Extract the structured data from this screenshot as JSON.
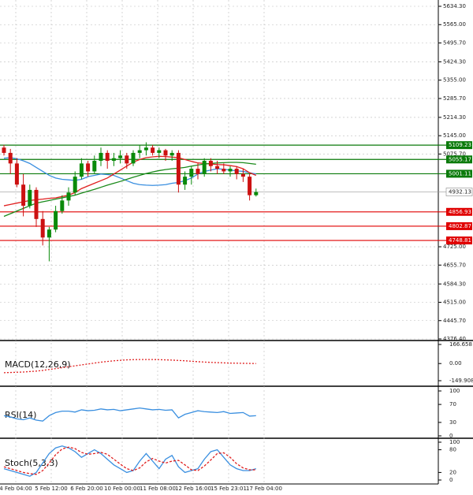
{
  "chart_data": {
    "type": "candlestick",
    "open": [
      5100,
      5080,
      5040,
      4960,
      4880,
      4940,
      4830,
      4760,
      4790,
      4860,
      4900,
      4930,
      4990,
      5040,
      5010,
      5050,
      5080,
      5050,
      5060,
      5070,
      5040,
      5080,
      5090,
      5100,
      5080,
      5090,
      5070,
      5080,
      4960,
      4990,
      5020,
      5000,
      5050,
      5030,
      5020,
      5010,
      5020,
      5000,
      4990,
      4920
    ],
    "high": [
      5110,
      5095,
      5060,
      5000,
      4960,
      4950,
      4860,
      4800,
      4880,
      4920,
      4950,
      5010,
      5060,
      5050,
      5070,
      5100,
      5090,
      5080,
      5090,
      5080,
      5090,
      5110,
      5120,
      5110,
      5100,
      5095,
      5090,
      5090,
      5010,
      5030,
      5040,
      5060,
      5060,
      5050,
      5040,
      5030,
      5030,
      5020,
      5000,
      4945
    ],
    "low": [
      5070,
      5000,
      4950,
      4840,
      4870,
      4800,
      4730,
      4670,
      4780,
      4850,
      4880,
      4920,
      4980,
      4990,
      5000,
      5030,
      5020,
      5030,
      5040,
      5020,
      5030,
      5060,
      5070,
      5070,
      5060,
      5050,
      5050,
      4930,
      4940,
      4960,
      4980,
      4990,
      5010,
      5000,
      5000,
      4990,
      4980,
      4970,
      4900,
      4915
    ],
    "close": [
      5080,
      5040,
      4960,
      4880,
      4940,
      4830,
      4760,
      4790,
      4860,
      4900,
      4930,
      4990,
      5040,
      5010,
      5050,
      5080,
      5050,
      5060,
      5070,
      5040,
      5080,
      5090,
      5100,
      5080,
      5090,
      5070,
      5080,
      4960,
      4990,
      5020,
      5000,
      5050,
      5030,
      5020,
      5010,
      5020,
      5000,
      4990,
      4920,
      4932.13
    ],
    "up_color": "#0a8a0a",
    "down_color": "#cc1111",
    "xtick_labels": [
      "4 Feb 04:00",
      "5 Feb 12:00",
      "6 Feb 20:00",
      "10 Feb 00:00",
      "11 Feb 08:00",
      "12 Feb 16:00",
      "15 Feb 23:01",
      "17 Feb 04:00"
    ],
    "ylim": [
      4376.4,
      5634.3
    ],
    "yticks": [
      {
        "value": 5634.3,
        "label": "5634.30"
      },
      {
        "value": 5565,
        "label": "5565.00"
      },
      {
        "value": 5495.7,
        "label": "5495.70"
      },
      {
        "value": 5424.3,
        "label": "5424.30"
      },
      {
        "value": 5355,
        "label": "5355.00"
      },
      {
        "value": 5285.7,
        "label": "5285.70"
      },
      {
        "value": 5214.3,
        "label": "5214.30"
      },
      {
        "value": 5145,
        "label": "5145.00"
      },
      {
        "value": 5075.7,
        "label": "5075.70"
      },
      {
        "value": 4725,
        "label": "4725.00"
      },
      {
        "value": 4655.7,
        "label": "4655.70"
      },
      {
        "value": 4584.3,
        "label": "4584.30"
      },
      {
        "value": 4515,
        "label": "4515.00"
      },
      {
        "value": 4445.7,
        "label": "4445.70"
      },
      {
        "value": 4376.4,
        "label": "4376.40"
      }
    ],
    "grid": true,
    "levels": [
      {
        "value": 5109.23,
        "color": "#0a7a0a"
      },
      {
        "value": 5055.17,
        "color": "#0a7a0a"
      },
      {
        "value": 5001.11,
        "color": "#0a7a0a"
      },
      {
        "value": 4856.93,
        "color": "#e00000"
      },
      {
        "value": 4802.87,
        "color": "#e00000"
      },
      {
        "value": 4748.81,
        "color": "#e00000"
      }
    ],
    "last_price": 4932.13,
    "moving_averages": [
      {
        "color": "#3a8fe0",
        "values": [
          5060,
          5062,
          5058,
          5050,
          5040,
          5025,
          5010,
          4995,
          4985,
          4980,
          4978,
          4976,
          4980,
          4990,
          4995,
          5000,
          4998,
          4995,
          4985,
          4975,
          4965,
          4960,
          4958,
          4957,
          4958,
          4960,
          4965,
          4968,
          4975,
          4985,
          5000,
          5010,
          5015,
          5020,
          5018,
          5015,
          5012,
          5010,
          5005,
          5000
        ]
      },
      {
        "color": "#e02020",
        "values": [
          4880,
          4885,
          4890,
          4895,
          4900,
          4903,
          4905,
          4908,
          4910,
          4915,
          4920,
          4930,
          4945,
          4955,
          4965,
          4975,
          4985,
          5000,
          5015,
          5030,
          5045,
          5055,
          5062,
          5065,
          5067,
          5066,
          5064,
          5062,
          5055,
          5048,
          5042,
          5040,
          5038,
          5036,
          5035,
          5032,
          5028,
          5020,
          5005,
          4995
        ]
      },
      {
        "color": "#1a8a1a",
        "values": [
          4840,
          4850,
          4860,
          4870,
          4880,
          4890,
          4895,
          4900,
          4905,
          4910,
          4915,
          4920,
          4928,
          4935,
          4942,
          4950,
          4958,
          4965,
          4972,
          4980,
          4988,
          4995,
          5002,
          5008,
          5013,
          5017,
          5020,
          5022,
          5025,
          5030,
          5034,
          5038,
          5040,
          5042,
          5043,
          5044,
          5044,
          5043,
          5040,
          5037
        ]
      }
    ],
    "macd": {
      "label": "MACD(12,26,9)",
      "color": "#e02020",
      "ylim": [
        -149.908,
        166.658
      ],
      "yticks": [
        166.658,
        {
          "value": 0,
          "label": "0.00"
        },
        -149.908
      ],
      "values": [
        -80,
        -78,
        -76,
        -74,
        -70,
        -66,
        -60,
        -52,
        -44,
        -36,
        -28,
        -20,
        -12,
        -4,
        4,
        12,
        18,
        24,
        28,
        32,
        34,
        35,
        35,
        35,
        34,
        32,
        30,
        27,
        24,
        20,
        16,
        13,
        10,
        8,
        6,
        4,
        3,
        2,
        1,
        0
      ]
    },
    "rsi": {
      "label": "RSI(14)",
      "color": "#3a8fe0",
      "ylim": [
        0,
        100
      ],
      "yticks": [
        100,
        70,
        30,
        0
      ],
      "values": [
        45,
        42,
        38,
        36,
        40,
        35,
        33,
        45,
        52,
        55,
        55,
        53,
        58,
        56,
        57,
        60,
        58,
        59,
        56,
        58,
        60,
        62,
        60,
        58,
        59,
        57,
        58,
        40,
        48,
        52,
        56,
        54,
        53,
        52,
        54,
        50,
        51,
        52,
        44,
        45
      ]
    },
    "stoch": {
      "label": "Stoch(5,3,3)",
      "ylim": [
        0,
        100
      ],
      "yticks": [
        100,
        80,
        20,
        0
      ],
      "series": [
        {
          "color": "#3a8fe0",
          "values": [
            30,
            25,
            20,
            15,
            10,
            20,
            45,
            70,
            85,
            90,
            85,
            75,
            60,
            70,
            80,
            70,
            55,
            40,
            30,
            20,
            25,
            50,
            70,
            50,
            30,
            55,
            65,
            35,
            20,
            25,
            30,
            55,
            75,
            80,
            60,
            40,
            30,
            25,
            25,
            30
          ]
        },
        {
          "color": "#e02020",
          "values": [
            35,
            30,
            25,
            20,
            17,
            15,
            25,
            45,
            67,
            82,
            87,
            83,
            73,
            68,
            70,
            73,
            68,
            55,
            42,
            30,
            25,
            32,
            48,
            57,
            50,
            45,
            50,
            52,
            40,
            27,
            25,
            37,
            53,
            70,
            72,
            60,
            43,
            32,
            27,
            27
          ]
        }
      ]
    }
  }
}
